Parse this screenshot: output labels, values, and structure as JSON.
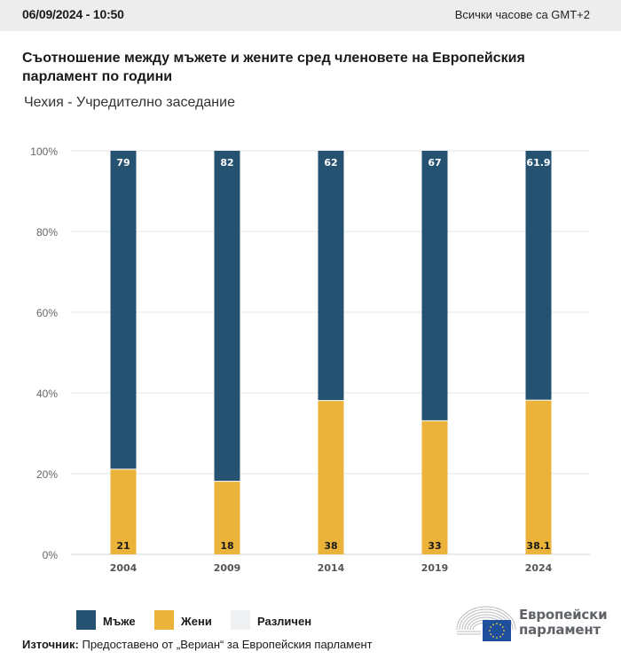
{
  "header": {
    "datetime": "06/09/2024 - 10:50",
    "timezone_note": "Всички часове са GMT+2"
  },
  "title": "Съотношение между мъжете и жените сред членовете на Европейския парламент по години",
  "subtitle": "Чехия - Учредително заседание",
  "colors": {
    "men": "#255270",
    "women": "#ebb33a",
    "other": "#eef0f2",
    "grid": "#e3e6ea",
    "axis_text": "#666666"
  },
  "chart_data": {
    "type": "bar",
    "stacked": true,
    "title": "Съотношение между мъжете и жените сред членовете на Европейския парламент по години",
    "subtitle": "Чехия - Учредително заседание",
    "xlabel": "",
    "ylabel": "",
    "categories": [
      "2004",
      "2009",
      "2014",
      "2019",
      "2024"
    ],
    "series": [
      {
        "name": "Жени",
        "key": "women",
        "values": [
          21,
          18,
          38,
          33,
          38.1
        ]
      },
      {
        "name": "Мъже",
        "key": "men",
        "values": [
          79,
          82,
          62,
          67,
          61.9
        ]
      },
      {
        "name": "Различен",
        "key": "other",
        "values": [
          0,
          0,
          0,
          0,
          0
        ]
      }
    ],
    "ylim": [
      0,
      100
    ],
    "yticks": [
      0,
      20,
      40,
      60,
      80,
      100
    ],
    "ytick_labels": [
      "0%",
      "20%",
      "40%",
      "60%",
      "80%",
      "100%"
    ],
    "grid": true,
    "legend_position": "bottom-left",
    "data_labels": true
  },
  "legend": [
    {
      "label": "Мъже",
      "key": "men"
    },
    {
      "label": "Жени",
      "key": "women"
    },
    {
      "label": "Различен",
      "key": "other"
    }
  ],
  "source": {
    "label": "Източник:",
    "text": " Предоставено от „Вериан“ за Европейския парламент"
  },
  "logo": {
    "line1": "Европейски",
    "line2": "парламент",
    "icon": "european-parliament-hemicycle-icon"
  }
}
